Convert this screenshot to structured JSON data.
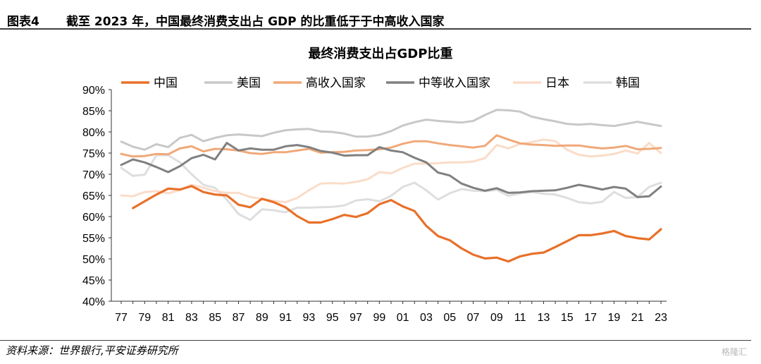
{
  "header": {
    "figure_label": "图表4",
    "title": "截至 2023 年，中国最终消费支出占 GDP 的比重低于于中高收入国家"
  },
  "footer": {
    "source": "资料来源：世界银行,平安证券研究所",
    "watermark": "格隆汇"
  },
  "chart_data": {
    "type": "line",
    "title": "最终消费支出占GDP比重",
    "xlabel": "",
    "ylabel": "",
    "ylim": [
      40,
      90
    ],
    "yticks": [
      "40%",
      "45%",
      "50%",
      "55%",
      "60%",
      "65%",
      "70%",
      "75%",
      "80%",
      "85%",
      "90%"
    ],
    "x": [
      1977,
      1978,
      1979,
      1980,
      1981,
      1982,
      1983,
      1984,
      1985,
      1986,
      1987,
      1988,
      1989,
      1990,
      1991,
      1992,
      1993,
      1994,
      1995,
      1996,
      1997,
      1998,
      1999,
      2000,
      2001,
      2002,
      2003,
      2004,
      2005,
      2006,
      2007,
      2008,
      2009,
      2010,
      2011,
      2012,
      2013,
      2014,
      2015,
      2016,
      2017,
      2018,
      2019,
      2020,
      2021,
      2022,
      2023
    ],
    "xticks": [
      "77",
      "79",
      "81",
      "83",
      "85",
      "87",
      "89",
      "91",
      "93",
      "95",
      "97",
      "99",
      "01",
      "03",
      "05",
      "07",
      "09",
      "11",
      "13",
      "15",
      "17",
      "19",
      "21",
      "23"
    ],
    "series": [
      {
        "name": "中国",
        "color": "#e8702a",
        "width": 3.2,
        "values": [
          null,
          62.0,
          63.6,
          65.2,
          66.6,
          66.4,
          67.2,
          65.8,
          65.2,
          65.0,
          62.8,
          62.2,
          64.2,
          63.4,
          62.2,
          60.1,
          58.6,
          58.6,
          59.4,
          60.4,
          59.9,
          60.8,
          62.9,
          63.9,
          62.4,
          61.3,
          57.8,
          55.4,
          54.4,
          52.5,
          51.0,
          50.1,
          50.3,
          49.4,
          50.6,
          51.2,
          51.5,
          52.8,
          54.2,
          55.6,
          55.6,
          56.0,
          56.6,
          55.4,
          54.9,
          54.6,
          57.0
        ]
      },
      {
        "name": "美国",
        "color": "#c8c8c8",
        "width": 3,
        "values": [
          77.7,
          76.5,
          75.8,
          77.1,
          76.4,
          78.6,
          79.3,
          77.8,
          78.6,
          79.2,
          79.4,
          79.2,
          79.0,
          79.8,
          80.4,
          80.6,
          80.7,
          80.1,
          80.0,
          79.6,
          78.9,
          78.9,
          79.3,
          80.2,
          81.5,
          82.3,
          82.9,
          82.6,
          82.4,
          82.2,
          82.6,
          84.0,
          85.2,
          85.1,
          84.8,
          83.6,
          83.0,
          82.5,
          81.9,
          81.7,
          81.9,
          81.6,
          81.4,
          81.9,
          82.4,
          81.9,
          81.4
        ]
      },
      {
        "name": "高收入国家",
        "color": "#f0a878",
        "width": 3,
        "values": [
          74.8,
          74.2,
          74.3,
          74.8,
          74.7,
          76.1,
          76.6,
          75.4,
          76.0,
          75.9,
          75.6,
          75.0,
          74.8,
          75.2,
          75.2,
          75.6,
          76.0,
          75.1,
          75.2,
          75.3,
          75.6,
          75.7,
          75.9,
          76.3,
          77.2,
          77.8,
          77.8,
          77.3,
          76.9,
          76.6,
          76.3,
          76.7,
          79.2,
          78.2,
          77.3,
          77.0,
          76.9,
          76.7,
          76.8,
          76.8,
          76.4,
          76.1,
          76.3,
          76.7,
          75.9,
          76.0,
          76.2
        ]
      },
      {
        "name": "中等收入国家",
        "color": "#808080",
        "width": 3,
        "values": [
          72.2,
          73.5,
          72.8,
          71.7,
          70.5,
          71.9,
          73.8,
          74.6,
          73.5,
          77.4,
          75.6,
          76.1,
          75.8,
          75.8,
          76.6,
          76.9,
          76.4,
          75.5,
          75.1,
          74.4,
          74.5,
          74.5,
          76.4,
          75.6,
          75.2,
          73.9,
          72.8,
          70.4,
          69.7,
          67.8,
          66.8,
          66.1,
          66.7,
          65.6,
          65.7,
          66.0,
          66.1,
          66.2,
          66.8,
          67.5,
          67.0,
          66.4,
          67.0,
          66.6,
          64.6,
          64.8,
          67.1
        ]
      },
      {
        "name": "日本",
        "color": "#fadcc8",
        "width": 3,
        "values": [
          65.0,
          64.8,
          65.8,
          66.0,
          65.5,
          66.2,
          67.5,
          66.8,
          66.0,
          65.6,
          65.6,
          64.6,
          64.2,
          63.7,
          63.4,
          64.4,
          66.2,
          67.8,
          67.9,
          67.8,
          68.2,
          68.8,
          70.5,
          70.2,
          71.5,
          72.5,
          72.5,
          72.6,
          72.8,
          72.8,
          73.0,
          73.8,
          76.9,
          76.1,
          77.2,
          77.6,
          78.2,
          77.8,
          75.8,
          74.6,
          74.2,
          74.4,
          74.8,
          75.6,
          74.9,
          77.4,
          75.0
        ]
      },
      {
        "name": "韩国",
        "color": "#dedede",
        "width": 3,
        "values": [
          71.5,
          69.6,
          69.9,
          74.5,
          74.5,
          72.8,
          70.0,
          67.5,
          66.8,
          64.0,
          60.6,
          59.2,
          61.7,
          61.5,
          61.0,
          62.1,
          62.1,
          62.2,
          62.3,
          62.6,
          63.8,
          64.1,
          63.6,
          64.9,
          67.0,
          68.0,
          66.2,
          64.0,
          65.5,
          66.5,
          66.1,
          66.0,
          66.3,
          64.9,
          65.5,
          65.8,
          65.4,
          65.2,
          64.4,
          63.4,
          63.1,
          63.5,
          65.8,
          64.4,
          64.6,
          67.0,
          68.0
        ]
      }
    ],
    "legend_position": "top",
    "grid": false
  }
}
